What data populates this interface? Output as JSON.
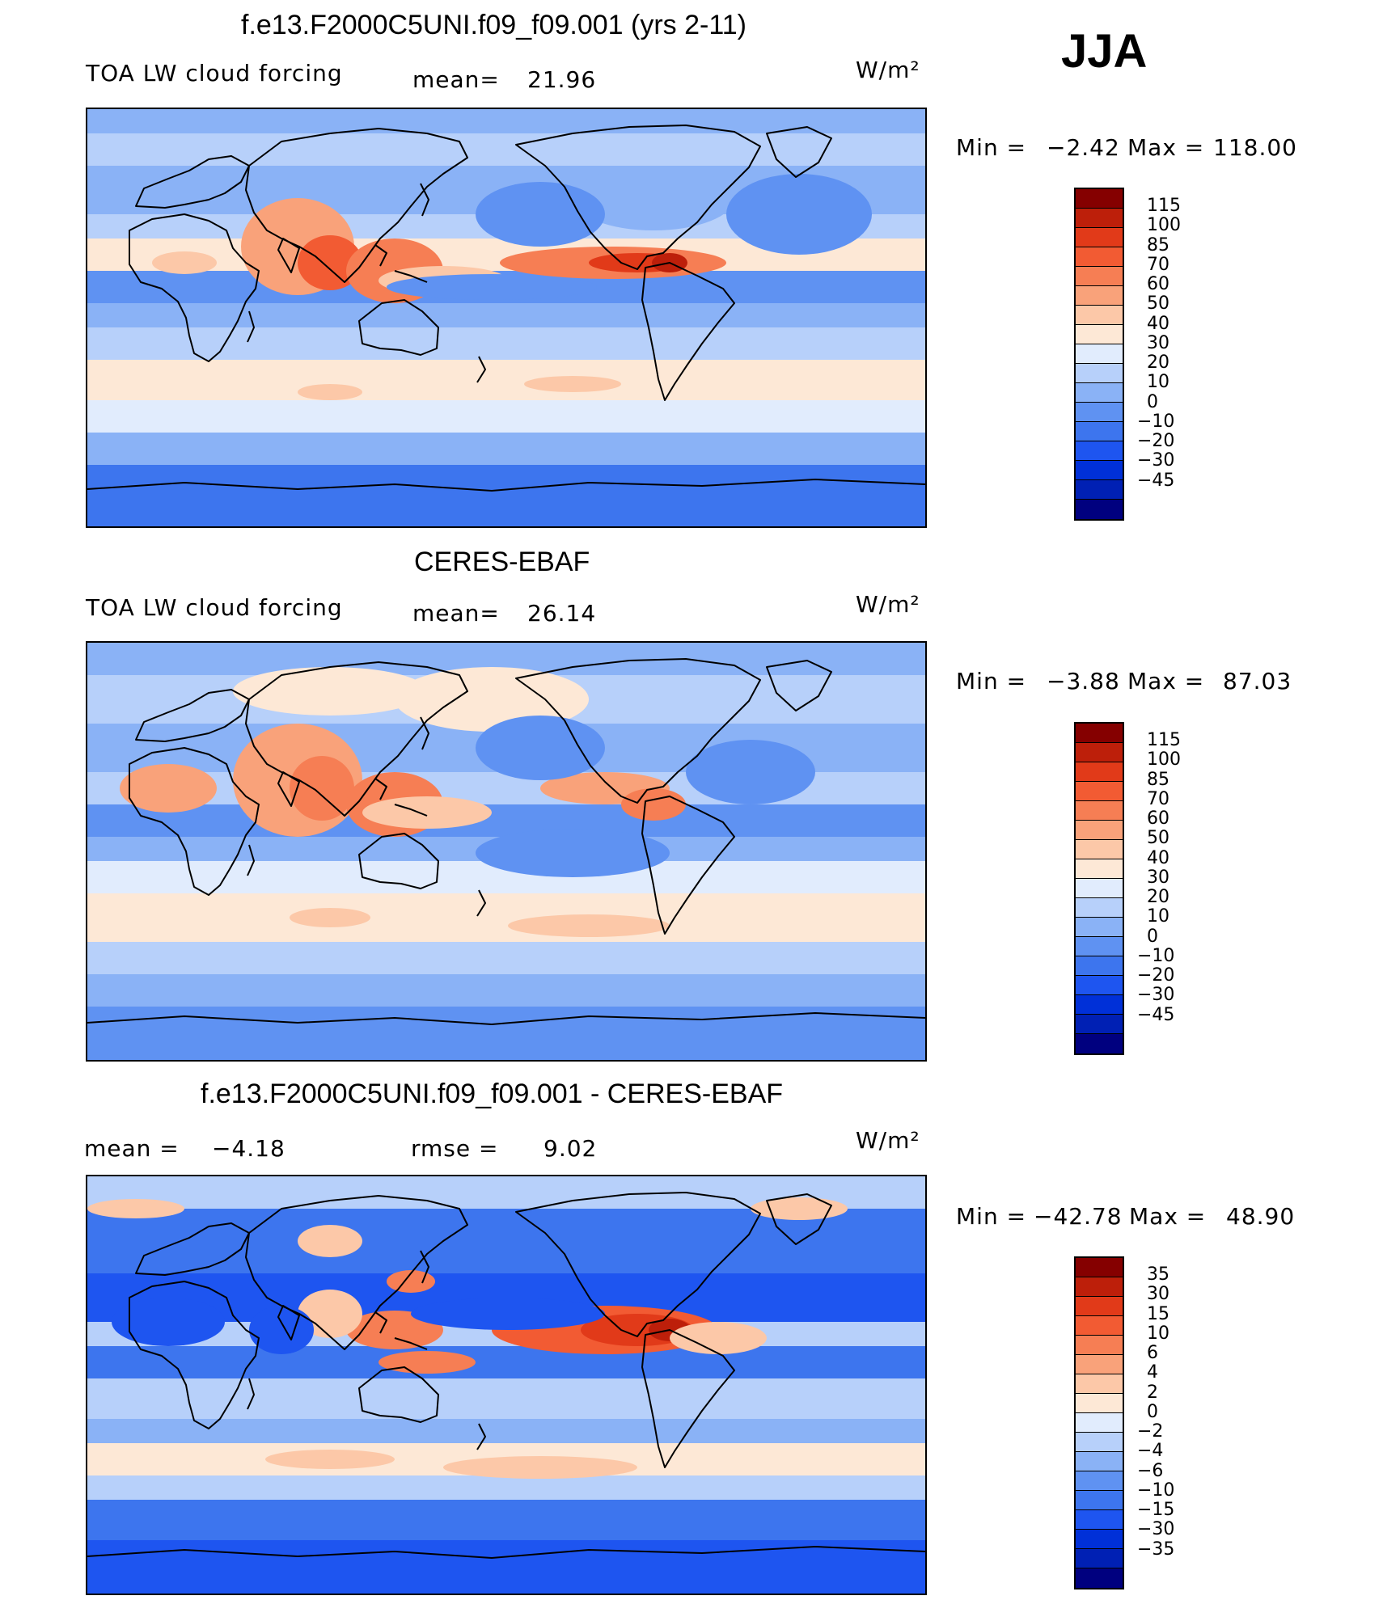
{
  "season": "JJA",
  "colors": {
    "land_outline": "#000000",
    "frame": "#000000",
    "scale_main": [
      "#00007f",
      "#0020b4",
      "#0030d8",
      "#1e55f0",
      "#3d75ee",
      "#5f92f2",
      "#8ab2f6",
      "#b7d0fa",
      "#e1ecfd",
      "#fde8d6",
      "#fcc8a8",
      "#f9a27a",
      "#f67e54",
      "#f25b33",
      "#e13a19",
      "#bd1f0a",
      "#850000"
    ],
    "scale_diff": [
      "#00007f",
      "#0020b4",
      "#0030d8",
      "#1e55f0",
      "#3d75ee",
      "#5f92f2",
      "#8ab2f6",
      "#b7d0fa",
      "#e1ecfd",
      "#fde8d6",
      "#fcc8a8",
      "#f9a27a",
      "#f67e54",
      "#f25b33",
      "#e13a19",
      "#bd1f0a",
      "#850000"
    ]
  },
  "chart_data": [
    {
      "type": "heatmap",
      "title": "f.e13.F2000C5UNI.f09_f09.001 (yrs 2-11)",
      "left_label": "TOA LW cloud forcing",
      "mean_label": "mean=",
      "mean_value": "21.96",
      "units": "W/m²",
      "min_label": "Min =",
      "min_value": "−2.42",
      "max_label": "Max =",
      "max_value": "118.00",
      "colorbar_ticks": [
        "115",
        "100",
        "85",
        "70",
        "60",
        "50",
        "40",
        "30",
        "20",
        "10",
        "0",
        "−10",
        "−20",
        "−30",
        "−45"
      ]
    },
    {
      "type": "heatmap",
      "title": "CERES-EBAF",
      "left_label": "TOA LW cloud forcing",
      "mean_label": "mean=",
      "mean_value": "26.14",
      "units": "W/m²",
      "min_label": "Min =",
      "min_value": "−3.88",
      "max_label": "Max =",
      "max_value": "87.03",
      "colorbar_ticks": [
        "115",
        "100",
        "85",
        "70",
        "60",
        "50",
        "40",
        "30",
        "20",
        "10",
        "0",
        "−10",
        "−20",
        "−30",
        "−45"
      ]
    },
    {
      "type": "heatmap",
      "title": "f.e13.F2000C5UNI.f09_f09.001 - CERES-EBAF",
      "mean_label": "mean =",
      "mean_value": "−4.18",
      "rmse_label": "rmse =",
      "rmse_value": "9.02",
      "units": "W/m²",
      "min_label": "Min =",
      "min_value": "−42.78",
      "max_label": "Max =",
      "max_value": "48.90",
      "colorbar_ticks": [
        "35",
        "30",
        "15",
        "10",
        "6",
        "4",
        "2",
        "0",
        "−2",
        "−4",
        "−6",
        "−10",
        "−15",
        "−30",
        "−35"
      ]
    }
  ]
}
